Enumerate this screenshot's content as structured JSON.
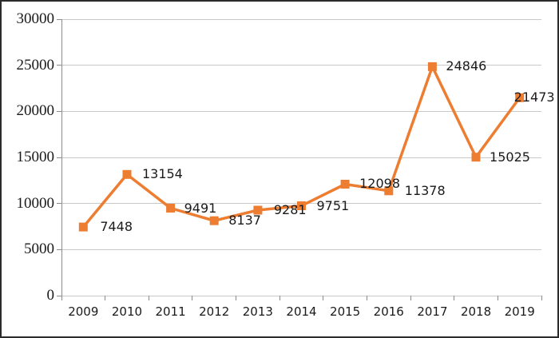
{
  "window": {
    "background_color": "#ffffff",
    "border_color": "#2b2b2b"
  },
  "chart_data": {
    "type": "line",
    "title": "",
    "categories": [
      "2009",
      "2010",
      "2011",
      "2012",
      "2013",
      "2014",
      "2015",
      "2016",
      "2017",
      "2018",
      "2019"
    ],
    "series": [
      {
        "name": "",
        "values": [
          7448,
          13154,
          9491,
          8137,
          9281,
          9751,
          12098,
          11378,
          24846,
          15025,
          21473
        ]
      }
    ],
    "point_labels": [
      "7448",
      "13154",
      "9491",
      "8137",
      "9281",
      "9751",
      "12098",
      "11378",
      "24846",
      "15025",
      "21473"
    ],
    "y_ticks": [
      "0",
      "5000",
      "10000",
      "15000",
      "20000",
      "25000",
      "30000"
    ],
    "ylim": [
      0,
      30000
    ],
    "xlabel": "",
    "ylabel": "",
    "grid": true,
    "legend_position": "none",
    "line_color": "#ED7D31",
    "marker_shape": "square",
    "marker_color": "#ED7D31",
    "gridline_color": "#c9c9c9",
    "axis_line_color": "#8c8c8c",
    "tick_label_color": "#1a1a1a",
    "data_label_color": "#1a1a1a"
  }
}
